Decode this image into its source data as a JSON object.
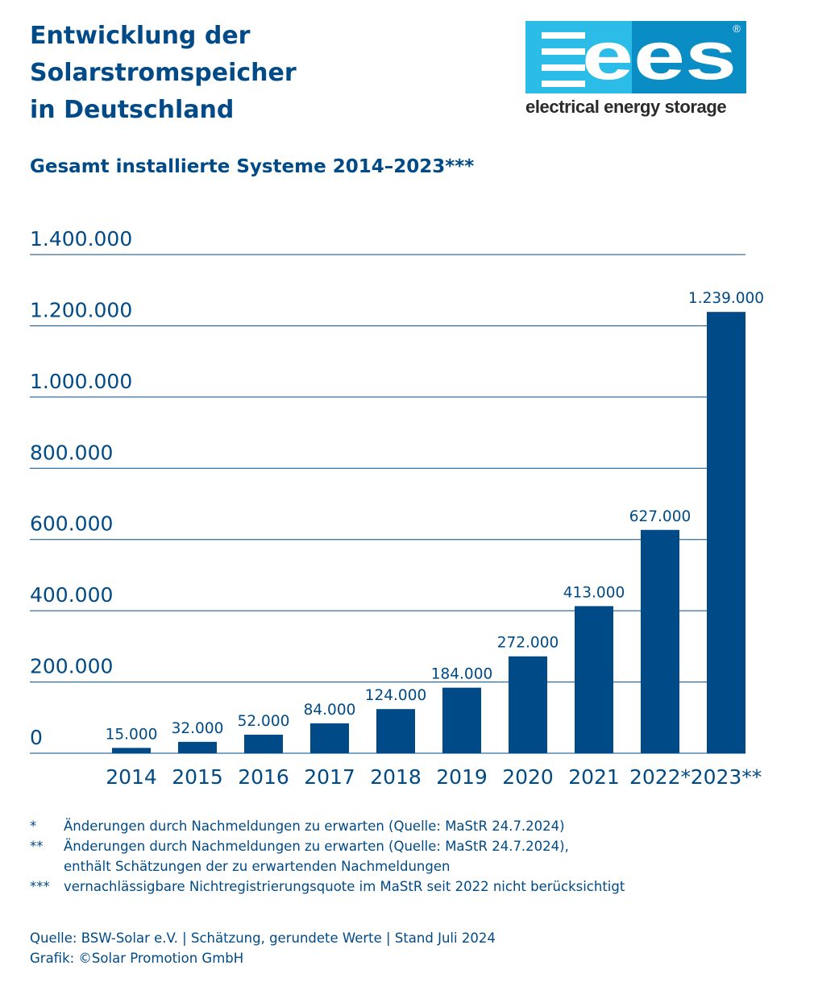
{
  "header": {
    "title_lines": [
      "Entwicklung der",
      "Solarstromspeicher",
      "in Deutschland"
    ],
    "subtitle": "Gesamt installierte Systeme 2014–2023***"
  },
  "logo": {
    "mark": "ees",
    "registered": "®",
    "tagline": "electrical energy storage",
    "colors": {
      "light": "#2bbce8",
      "dark": "#0a8cc4",
      "text": "#2b2b2b"
    }
  },
  "chart_data": {
    "type": "bar",
    "title": "Gesamt installierte Systeme 2014–2023***",
    "categories": [
      "2014",
      "2015",
      "2016",
      "2017",
      "2018",
      "2019",
      "2020",
      "2021",
      "2022*",
      "2023**"
    ],
    "values": [
      15000,
      32000,
      52000,
      84000,
      124000,
      184000,
      272000,
      413000,
      627000,
      1239000
    ],
    "value_labels": [
      "15.000",
      "32.000",
      "52.000",
      "84.000",
      "124.000",
      "184.000",
      "272.000",
      "413.000",
      "627.000",
      "1.239.000"
    ],
    "y_ticks": [
      0,
      200000,
      400000,
      600000,
      800000,
      1000000,
      1200000,
      1400000
    ],
    "y_tick_labels": [
      "0",
      "200.000",
      "400.000",
      "600.000",
      "800.000",
      "1.000.000",
      "1.200.000",
      "1.400.000"
    ],
    "ylim": [
      0,
      1400000
    ],
    "xlabel": "",
    "ylabel": "",
    "grid": true,
    "colors": {
      "bar": "#004a87",
      "text": "#004a87",
      "grid": "#004a87"
    }
  },
  "footnotes": [
    {
      "mark": "*",
      "lines": [
        "Änderungen durch Nachmeldungen zu erwarten (Quelle: MaStR 24.7.2024)"
      ]
    },
    {
      "mark": "**",
      "lines": [
        "Änderungen durch Nachmeldungen zu erwarten (Quelle: MaStR 24.7.2024),",
        "enthält Schätzungen der zu erwartenden Nachmeldungen"
      ]
    },
    {
      "mark": "***",
      "lines": [
        "vernachlässigbare Nichtregistrierungsquote im MaStR seit 2022 nicht berücksichtigt"
      ]
    }
  ],
  "source": {
    "line1": "Quelle: BSW-Solar e.V. | Schätzung, gerundete Werte | Stand Juli 2024",
    "line2": "Grafik: ©Solar Promotion GmbH"
  }
}
